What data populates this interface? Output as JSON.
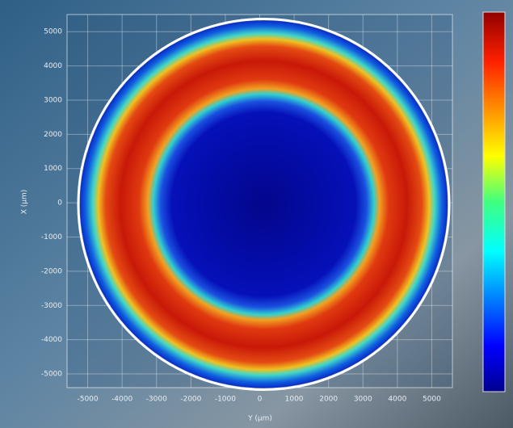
{
  "chart_data": {
    "type": "heatmap",
    "xlabel": "Y (µm)",
    "ylabel": "X (µm)",
    "xlim": [
      -5600,
      5600
    ],
    "ylim": [
      -5400,
      5500
    ],
    "xticks": [
      -5000,
      -4000,
      -3000,
      -2000,
      -1000,
      0,
      1000,
      2000,
      3000,
      4000,
      5000
    ],
    "yticks": [
      -5000,
      -4000,
      -3000,
      -2000,
      -1000,
      0,
      1000,
      2000,
      3000,
      4000,
      5000
    ],
    "grid": true,
    "colormap": "jet"
  }
}
